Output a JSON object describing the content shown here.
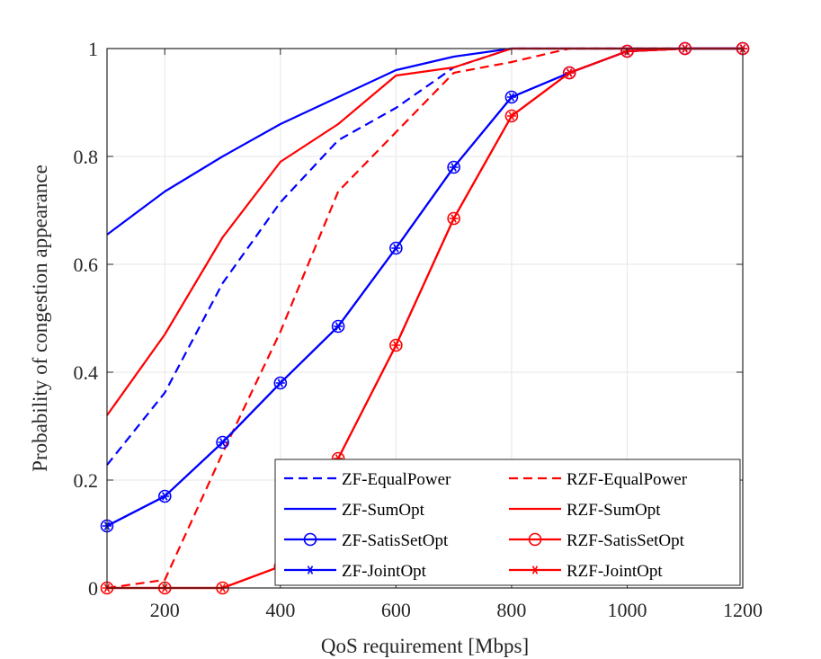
{
  "chart_data": {
    "type": "line",
    "title": "",
    "xlabel": "QoS requirement [Mbps]",
    "ylabel": "Probability of congestion appearance",
    "xlim": [
      100,
      1200
    ],
    "ylim": [
      0,
      1
    ],
    "xticks": [
      200,
      400,
      600,
      800,
      1000,
      1200
    ],
    "yticks": [
      0,
      0.2,
      0.4,
      0.6,
      0.8,
      1
    ],
    "ytick_labels": [
      "0",
      "0.2",
      "0.4",
      "0.6",
      "0.8",
      "1"
    ],
    "grid": true,
    "legend_position": "bottom-right",
    "legend_columns": 2,
    "colors": {
      "blue": "#0000ff",
      "red": "#ff0000",
      "grid": "#e6e6e6",
      "axis": "#262626"
    },
    "series": [
      {
        "name": "ZF-EqualPower",
        "color": "#0000ff",
        "style": "dashed",
        "marker": "none",
        "x": [
          100,
          200,
          300,
          400,
          500,
          600,
          700,
          800,
          900,
          1000,
          1100,
          1200
        ],
        "y": [
          0.228,
          0.362,
          0.565,
          0.715,
          0.83,
          0.89,
          0.965,
          1.0,
          1.0,
          1.0,
          1.0,
          1.0
        ]
      },
      {
        "name": "RZF-EqualPower",
        "color": "#ff0000",
        "style": "dashed",
        "marker": "none",
        "x": [
          100,
          200,
          300,
          400,
          500,
          600,
          700,
          800,
          900,
          1000,
          1100,
          1200
        ],
        "y": [
          0.0,
          0.015,
          0.25,
          0.475,
          0.735,
          0.845,
          0.955,
          0.975,
          1.0,
          1.0,
          1.0,
          1.0
        ]
      },
      {
        "name": "ZF-SumOpt",
        "color": "#0000ff",
        "style": "solid",
        "marker": "none",
        "x": [
          100,
          200,
          300,
          400,
          500,
          600,
          700,
          800,
          900,
          1000,
          1100,
          1200
        ],
        "y": [
          0.655,
          0.735,
          0.8,
          0.86,
          0.91,
          0.96,
          0.985,
          1.0,
          1.0,
          1.0,
          1.0,
          1.0
        ]
      },
      {
        "name": "RZF-SumOpt",
        "color": "#ff0000",
        "style": "solid",
        "marker": "none",
        "x": [
          100,
          200,
          300,
          400,
          500,
          600,
          700,
          800,
          900,
          1000,
          1100,
          1200
        ],
        "y": [
          0.32,
          0.47,
          0.65,
          0.79,
          0.86,
          0.95,
          0.965,
          1.0,
          1.0,
          1.0,
          1.0,
          1.0
        ]
      },
      {
        "name": "ZF-SatisSetOpt",
        "color": "#0000ff",
        "style": "solid",
        "marker": "circle",
        "x": [
          100,
          200,
          300,
          400,
          500,
          600,
          700,
          800,
          900,
          1000,
          1100,
          1200
        ],
        "y": [
          0.115,
          0.17,
          0.27,
          0.38,
          0.485,
          0.63,
          0.78,
          0.91,
          0.955,
          0.995,
          1.0,
          1.0
        ]
      },
      {
        "name": "RZF-SatisSetOpt",
        "color": "#ff0000",
        "style": "solid",
        "marker": "circle",
        "x": [
          100,
          200,
          300,
          400,
          500,
          600,
          700,
          800,
          900,
          1000,
          1100,
          1200
        ],
        "y": [
          0.0,
          0.0,
          0.0,
          0.04,
          0.24,
          0.45,
          0.685,
          0.875,
          0.955,
          0.995,
          1.0,
          1.0
        ]
      },
      {
        "name": "ZF-JointOpt",
        "color": "#0000ff",
        "style": "solid",
        "marker": "asterisk",
        "x": [
          100,
          200,
          300,
          400,
          500,
          600,
          700,
          800,
          900,
          1000,
          1100,
          1200
        ],
        "y": [
          0.115,
          0.17,
          0.27,
          0.38,
          0.485,
          0.63,
          0.78,
          0.91,
          0.955,
          0.995,
          1.0,
          1.0
        ]
      },
      {
        "name": "RZF-JointOpt",
        "color": "#ff0000",
        "style": "solid",
        "marker": "asterisk",
        "x": [
          100,
          200,
          300,
          400,
          500,
          600,
          700,
          800,
          900,
          1000,
          1100,
          1200
        ],
        "y": [
          0.0,
          0.0,
          0.0,
          0.04,
          0.24,
          0.45,
          0.685,
          0.875,
          0.955,
          0.995,
          1.0,
          1.0
        ]
      }
    ]
  }
}
